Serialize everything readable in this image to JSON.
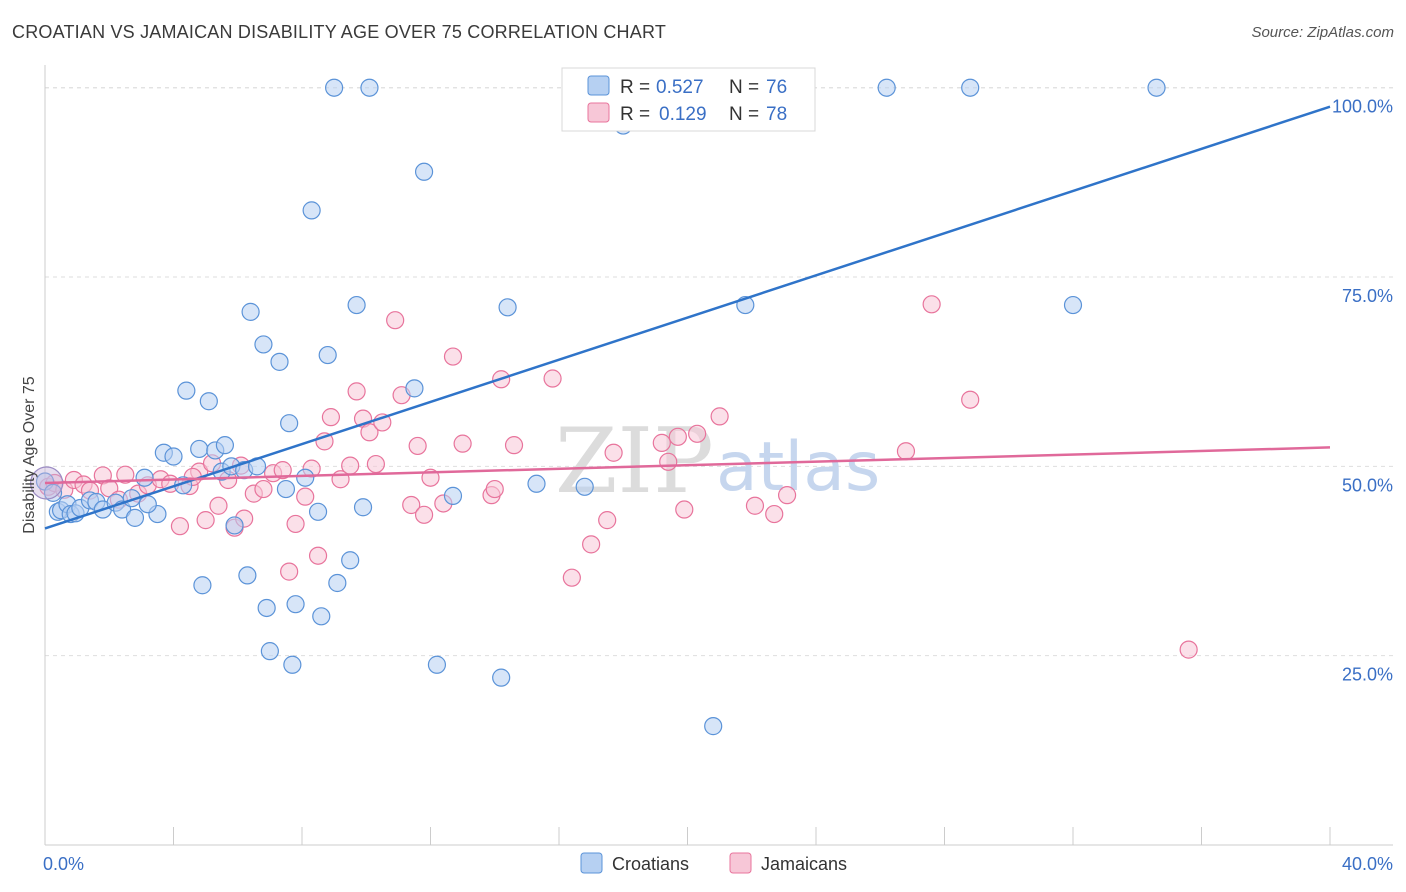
{
  "header": {
    "title": "CROATIAN VS JAMAICAN DISABILITY AGE OVER 75 CORRELATION CHART",
    "source": "Source: ZipAtlas.com"
  },
  "legend_top": {
    "rows": [
      {
        "r_label": "R =",
        "r_value": "0.527",
        "n_label": "N =",
        "n_value": "76"
      },
      {
        "r_label": "R =",
        "r_value": "0.129",
        "n_label": "N =",
        "n_value": "78"
      }
    ]
  },
  "legend_bottom": {
    "items": [
      {
        "label": "Croatians"
      },
      {
        "label": "Jamaicans"
      }
    ]
  },
  "watermark": {
    "zip": "ZIP",
    "atlas": "atlas"
  },
  "chart_data": {
    "type": "scatter",
    "title": "CROATIAN VS JAMAICAN DISABILITY AGE OVER 75 CORRELATION CHART",
    "xlabel": "",
    "ylabel": "Disability Age Over 75",
    "xlim": [
      0,
      40
    ],
    "ylim": [
      0,
      103
    ],
    "x_ticks": [
      0,
      4,
      8,
      12,
      16,
      20,
      24,
      28,
      32,
      36,
      40
    ],
    "x_tick_labels": [
      {
        "value": 0,
        "label": "0.0%"
      },
      {
        "value": 40,
        "label": "40.0%"
      }
    ],
    "y_ticks": [
      {
        "value": 25,
        "label": "25.0%"
      },
      {
        "value": 50,
        "label": "50.0%"
      },
      {
        "value": 75,
        "label": "75.0%"
      },
      {
        "value": 100,
        "label": "100.0%"
      }
    ],
    "grid": true,
    "colors": {
      "croatians": "#5b93d8",
      "croatians_fill": "#b6d0f2",
      "jamaicans": "#e8749c",
      "jamaicans_fill": "#f7c7d7"
    },
    "series": [
      {
        "name": "Croatians",
        "r": 0.527,
        "n": 76,
        "trend": {
          "x0": 0,
          "y0": 41.8,
          "x1": 40,
          "y1": 97.5
        },
        "points": [
          [
            0.0,
            48.0
          ],
          [
            0.25,
            46.5
          ],
          [
            0.4,
            44.0
          ],
          [
            0.5,
            44.2
          ],
          [
            0.7,
            45.0
          ],
          [
            0.8,
            43.7
          ],
          [
            0.95,
            43.8
          ],
          [
            1.1,
            44.5
          ],
          [
            1.4,
            45.5
          ],
          [
            1.6,
            45.3
          ],
          [
            1.8,
            44.3
          ],
          [
            2.2,
            45.2
          ],
          [
            2.4,
            44.3
          ],
          [
            2.7,
            45.8
          ],
          [
            2.8,
            43.2
          ],
          [
            3.1,
            48.5
          ],
          [
            3.5,
            43.7
          ],
          [
            3.7,
            51.8
          ],
          [
            3.2,
            45.0
          ],
          [
            4.0,
            51.3
          ],
          [
            4.3,
            47.5
          ],
          [
            4.4,
            60.0
          ],
          [
            4.8,
            52.3
          ],
          [
            4.9,
            34.3
          ],
          [
            5.1,
            58.6
          ],
          [
            5.3,
            52.1
          ],
          [
            5.5,
            49.3
          ],
          [
            5.6,
            52.8
          ],
          [
            5.8,
            50.0
          ],
          [
            5.9,
            42.2
          ],
          [
            6.2,
            49.5
          ],
          [
            6.3,
            35.6
          ],
          [
            6.4,
            70.4
          ],
          [
            6.6,
            50.0
          ],
          [
            6.8,
            66.1
          ],
          [
            6.9,
            31.3
          ],
          [
            7.0,
            25.6
          ],
          [
            7.3,
            63.8
          ],
          [
            7.5,
            47.0
          ],
          [
            7.6,
            55.7
          ],
          [
            7.7,
            23.8
          ],
          [
            7.8,
            31.8
          ],
          [
            8.1,
            48.5
          ],
          [
            8.3,
            83.8
          ],
          [
            8.5,
            44.0
          ],
          [
            8.6,
            30.2
          ],
          [
            8.8,
            64.7
          ],
          [
            9.0,
            100.0
          ],
          [
            9.1,
            34.6
          ],
          [
            9.5,
            37.6
          ],
          [
            9.7,
            71.3
          ],
          [
            9.9,
            44.6
          ],
          [
            10.1,
            100.0
          ],
          [
            11.5,
            60.3
          ],
          [
            11.8,
            88.9
          ],
          [
            12.2,
            23.8
          ],
          [
            12.7,
            46.1
          ],
          [
            14.2,
            22.1
          ],
          [
            14.4,
            71.0
          ],
          [
            15.3,
            47.7
          ],
          [
            16.8,
            47.3
          ],
          [
            18.0,
            95.0
          ],
          [
            20.8,
            15.7
          ],
          [
            21.8,
            71.3
          ],
          [
            26.2,
            100.0
          ],
          [
            28.8,
            100.0
          ],
          [
            34.6,
            100.0
          ],
          [
            32.0,
            71.3
          ]
        ]
      },
      {
        "name": "Jamaicans",
        "r": 0.129,
        "n": 78,
        "trend": {
          "x0": 0,
          "y0": 47.8,
          "x1": 40,
          "y1": 52.5
        },
        "points": [
          [
            0.1,
            47.3
          ],
          [
            0.3,
            47.8
          ],
          [
            0.6,
            46.9
          ],
          [
            0.9,
            48.2
          ],
          [
            1.2,
            47.6
          ],
          [
            1.4,
            46.8
          ],
          [
            1.8,
            48.8
          ],
          [
            2.0,
            47.1
          ],
          [
            2.3,
            45.6
          ],
          [
            2.5,
            48.9
          ],
          [
            2.9,
            46.4
          ],
          [
            3.2,
            47.5
          ],
          [
            3.6,
            48.3
          ],
          [
            3.9,
            47.7
          ],
          [
            4.2,
            42.1
          ],
          [
            4.5,
            47.4
          ],
          [
            4.8,
            49.3
          ],
          [
            5.0,
            42.9
          ],
          [
            5.2,
            50.4
          ],
          [
            5.4,
            44.8
          ],
          [
            5.7,
            48.2
          ],
          [
            5.9,
            41.9
          ],
          [
            6.1,
            50.1
          ],
          [
            6.2,
            43.1
          ],
          [
            6.5,
            46.4
          ],
          [
            6.8,
            47.0
          ],
          [
            7.1,
            49.1
          ],
          [
            7.4,
            49.5
          ],
          [
            7.6,
            36.1
          ],
          [
            7.8,
            42.4
          ],
          [
            8.1,
            46.0
          ],
          [
            8.3,
            49.7
          ],
          [
            8.5,
            38.2
          ],
          [
            8.7,
            53.3
          ],
          [
            8.9,
            56.5
          ],
          [
            9.2,
            48.3
          ],
          [
            9.5,
            50.1
          ],
          [
            9.7,
            59.9
          ],
          [
            9.9,
            56.3
          ],
          [
            10.1,
            54.5
          ],
          [
            10.3,
            50.3
          ],
          [
            10.5,
            55.8
          ],
          [
            10.9,
            69.3
          ],
          [
            11.1,
            59.4
          ],
          [
            11.4,
            44.9
          ],
          [
            11.6,
            52.7
          ],
          [
            11.8,
            43.6
          ],
          [
            12.0,
            48.5
          ],
          [
            12.4,
            45.1
          ],
          [
            12.7,
            64.5
          ],
          [
            13.0,
            53.0
          ],
          [
            13.9,
            46.2
          ],
          [
            14.2,
            61.5
          ],
          [
            14.6,
            52.8
          ],
          [
            15.8,
            61.6
          ],
          [
            16.4,
            35.3
          ],
          [
            17.0,
            39.7
          ],
          [
            17.5,
            42.9
          ],
          [
            17.7,
            51.8
          ],
          [
            19.2,
            53.1
          ],
          [
            19.4,
            50.6
          ],
          [
            19.7,
            53.9
          ],
          [
            19.9,
            44.3
          ],
          [
            20.3,
            54.3
          ],
          [
            21.0,
            56.6
          ],
          [
            22.1,
            44.8
          ],
          [
            22.7,
            43.7
          ],
          [
            23.1,
            46.2
          ],
          [
            26.8,
            52.0
          ],
          [
            27.6,
            71.4
          ],
          [
            28.8,
            58.8
          ],
          [
            35.6,
            25.8
          ],
          [
            14.0,
            47.0
          ],
          [
            4.6,
            48.6
          ]
        ]
      }
    ]
  }
}
